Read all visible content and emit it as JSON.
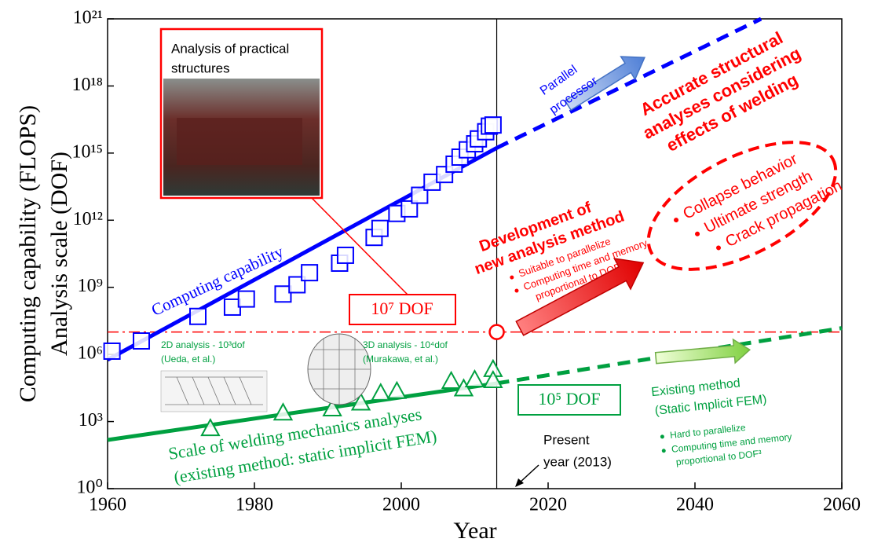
{
  "chart_data": {
    "type": "scatter",
    "x_label": "Year",
    "y_label": [
      "Computing capability (FLOPS)",
      "Analysis scale (DOF)"
    ],
    "xlim": [
      1960,
      2060
    ],
    "xticks": [
      1960,
      1980,
      2000,
      2020,
      2040,
      2060
    ],
    "ylim": [
      1,
      1e+21
    ],
    "log_y": true,
    "yticks": [
      {
        "value": 1,
        "label": "10⁰"
      },
      {
        "value": 1000.0,
        "label": "10³"
      },
      {
        "value": 1000000.0,
        "label": "10⁶"
      },
      {
        "value": 1000000000.0,
        "label": "10⁹"
      },
      {
        "value": 1000000000000.0,
        "label": "10¹²"
      },
      {
        "value": 1000000000000000.0,
        "label": "10¹⁵"
      },
      {
        "value": 1e+18,
        "label": "10¹⁸"
      },
      {
        "value": 1e+21,
        "label": "10²¹"
      }
    ],
    "series": [
      {
        "name": "Computing capability",
        "color": "#0000ff",
        "marker": "square",
        "x": [
          1960.6,
          1964.6,
          1972.3,
          1977.0,
          1978.9,
          1983.9,
          1985.8,
          1987.5,
          1991.6,
          1992.4,
          1996.3,
          1997.1,
          1999.4,
          2001.1,
          2002.5,
          2004.2,
          2005.9,
          2007.2,
          2008,
          2009,
          2010,
          2010.5,
          2011.5,
          2012,
          2012.5
        ],
        "values": [
          1400000.0,
          4000000.0,
          50000000.0,
          130000000.0,
          300000000.0,
          500000000.0,
          1300000000.0,
          4500000000.0,
          12000000000.0,
          27000000000.0,
          170000000000.0,
          430000000000.0,
          2000000000000.0,
          3200000000000.0,
          13000000000000.0,
          50000000000000.0,
          110000000000000.0,
          320000000000000.0,
          660000000000000.0,
          1400000000000000.0,
          2600000000000000.0,
          4300000000000000.0,
          9000000000000000.0,
          1.6e+16,
          1.8e+16
        ]
      },
      {
        "name": "Scale of welding mechanics analyses",
        "color": "#00a040",
        "marker": "triangle",
        "x": [
          1974.0,
          1983.9,
          1990.6,
          1994.5,
          1997.2,
          1999.4,
          2006.8,
          2008.5,
          2010,
          2012.5,
          2012.5
        ],
        "values": [
          500,
          2500,
          3800,
          7000,
          19000,
          23000,
          65000,
          30000,
          76000,
          220000,
          70000
        ]
      }
    ],
    "lines": [
      {
        "color": "#0000ff",
        "style": "solid",
        "x": [
          1960,
          2013
        ],
        "values": [
          580000.0,
          1700000000000000.0
        ]
      },
      {
        "color": "#0000ff",
        "style": "dashed",
        "x": [
          2013,
          2049
        ],
        "values": [
          1700000000000000.0,
          1e+21
        ]
      },
      {
        "color": "#00a040",
        "style": "solid",
        "x": [
          1960,
          2013
        ],
        "values": [
          150,
          51000
        ]
      },
      {
        "color": "#00a040",
        "style": "dashed",
        "x": [
          2013,
          2060
        ],
        "values": [
          51000,
          15000000.0
        ]
      }
    ],
    "hline": {
      "value": 10000000.0,
      "color": "#ff0000"
    },
    "vline": {
      "value": 2013
    },
    "point": {
      "x": 2013,
      "value": 10000000.0,
      "color": "#ff0000"
    },
    "annotations": {
      "inset_title": [
        "Analysis of practical",
        "structures"
      ],
      "parallel_processor": [
        "Parallel",
        "processor"
      ],
      "accurate": [
        "Accurate structural",
        "analyses considering",
        "effects of welding"
      ],
      "ellipse_items": [
        "Collapse behavior",
        "Ultimate strength",
        "Crack propagation"
      ],
      "development": [
        "Development of",
        "new analysis method"
      ],
      "development_items": [
        "Suitable  to parallelize",
        "Computing time and memory",
        "proportional to DOF¹"
      ],
      "dof7": "10⁷ DOF",
      "analysis_2d": [
        "2D analysis - 10³dof",
        "(Ueda, et al.)"
      ],
      "analysis_3d": [
        "3D analysis - 10⁴dof",
        "(Murakawa, et al.)"
      ],
      "dof5": "10⁵ DOF",
      "existing": [
        "Existing method",
        "(Static Implicit FEM)"
      ],
      "existing_items": [
        "Hard to parallelize",
        "Computing time  and memory",
        "proportional to DOF³"
      ],
      "welding_sub": "(existing method: static implicit FEM)",
      "present": [
        "Present",
        "year (2013)"
      ]
    }
  }
}
